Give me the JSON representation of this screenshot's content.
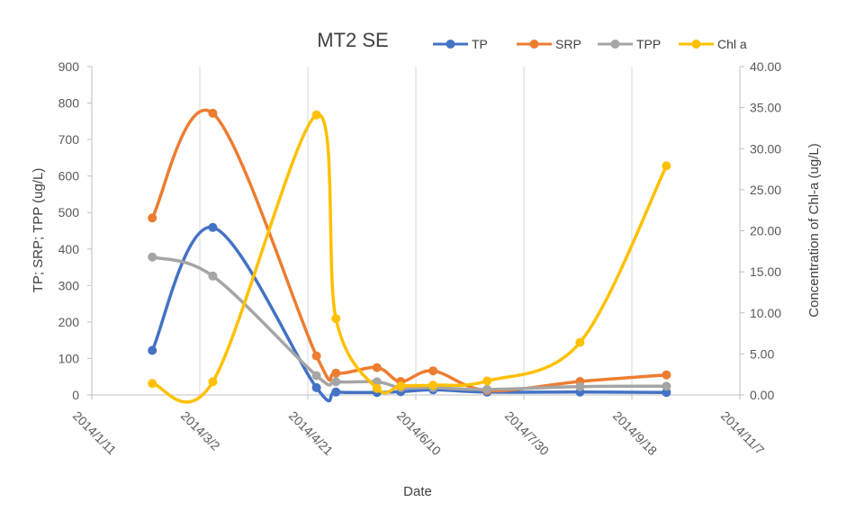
{
  "chart_data": {
    "type": "line",
    "title": "MT2 SE",
    "xlabel": "Date",
    "ylabel": "TP; SRP; TPP (ug/L)",
    "y2label": "Concentration of Chl-a (ug/L)",
    "x_ticks": [
      "2014/1/11",
      "2014/3/2",
      "2014/4/21",
      "2014/6/10",
      "2014/7/30",
      "2014/9/18",
      "2014/11/7"
    ],
    "y_ticks": [
      "0",
      "100",
      "200",
      "300",
      "400",
      "500",
      "600",
      "700",
      "800",
      "900"
    ],
    "y2_ticks": [
      "0.00",
      "5.00",
      "10.00",
      "15.00",
      "20.00",
      "25.00",
      "30.00",
      "35.00",
      "40.00"
    ],
    "xlim_days": [
      0,
      300
    ],
    "ylim": [
      0,
      900
    ],
    "y2lim": [
      0,
      40
    ],
    "grid": "vertical",
    "legend_position": "top",
    "x_unit": "days since 2014/1/11",
    "series": [
      {
        "name": "TP",
        "color": "#4472C4",
        "axis": "left",
        "x": [
          28,
          56,
          104,
          113,
          132,
          143,
          158,
          183,
          226,
          266
        ],
        "values": [
          122,
          459,
          20,
          8,
          7,
          9,
          14,
          8,
          8,
          7
        ]
      },
      {
        "name": "SRP",
        "color": "#ED7D31",
        "axis": "left",
        "x": [
          28,
          56,
          104,
          113,
          132,
          143,
          158,
          183,
          226,
          266
        ],
        "values": [
          485,
          772,
          107,
          60,
          75,
          37,
          66,
          12,
          37,
          55
        ]
      },
      {
        "name": "TPP",
        "color": "#A5A5A5",
        "axis": "left",
        "x": [
          28,
          56,
          104,
          113,
          132,
          143,
          158,
          183,
          226,
          266
        ],
        "values": [
          378,
          326,
          53,
          36,
          36,
          20,
          20,
          15,
          23,
          24
        ]
      },
      {
        "name": "Chl a",
        "color": "#FFC000",
        "axis": "right",
        "x": [
          28,
          56,
          104,
          113,
          132,
          143,
          158,
          183,
          226,
          266
        ],
        "values": [
          1.4,
          1.6,
          34.1,
          9.3,
          0.8,
          1.1,
          1.2,
          1.7,
          6.4,
          27.9
        ]
      }
    ]
  }
}
